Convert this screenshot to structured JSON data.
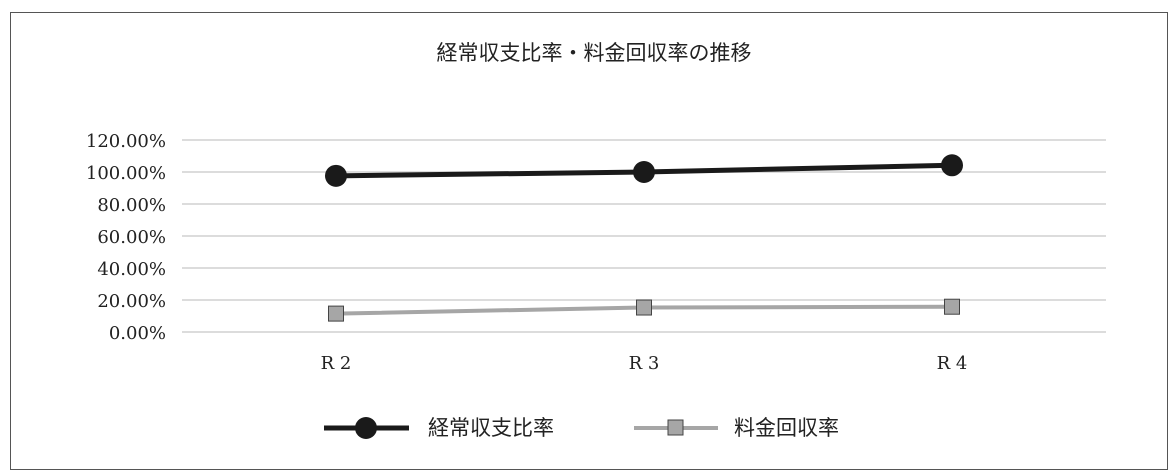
{
  "chart_data": {
    "type": "line",
    "title": "経常収支比率・料金回収率の推移",
    "categories": [
      "R 2",
      "R 3",
      "R 4"
    ],
    "series": [
      {
        "name": "経常収支比率",
        "values": [
          97.6,
          100.0,
          104.2
        ],
        "color": "#1a1a1a",
        "marker": "circle"
      },
      {
        "name": "料金回収率",
        "values": [
          11.5,
          15.3,
          15.8
        ],
        "color": "#a6a6a6",
        "marker": "square"
      }
    ],
    "y_ticks": [
      "0.00%",
      "20.00%",
      "40.00%",
      "60.00%",
      "80.00%",
      "100.00%",
      "120.00%"
    ],
    "ylim": [
      0,
      120
    ],
    "grid": true,
    "legend_position": "bottom"
  }
}
